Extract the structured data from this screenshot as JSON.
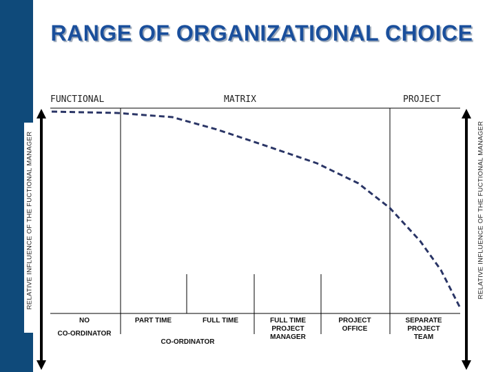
{
  "title": "RANGE OF ORGANIZATIONAL CHOICE",
  "columns": {
    "functional": "FUNCTIONAL",
    "matrix": "MATRIX",
    "project": "PROJECT"
  },
  "axes": {
    "left": "RELATIVE INFLUENCE OF THE FUCTIONAL MANAGER",
    "right": "RELATIVE INFLUENCE OF THE FUCTIONAL MANAGER"
  },
  "cells": {
    "no": "NO",
    "co_coordinator_1": "CO-ORDINATOR",
    "part_time": "PART TIME",
    "full_time": "FULL TIME",
    "co_coordinator_2": "CO-ORDINATOR",
    "full_time_pm": "FULL TIME\nPROJECT\nMANAGER",
    "project_office": "PROJECT\nOFFICE",
    "separate_team": "SEPARATE\nPROJECT\nTEAM"
  },
  "colors": {
    "band": "#0f4a7a",
    "title": "#1a4f9c",
    "curve": "#2a3566"
  }
}
